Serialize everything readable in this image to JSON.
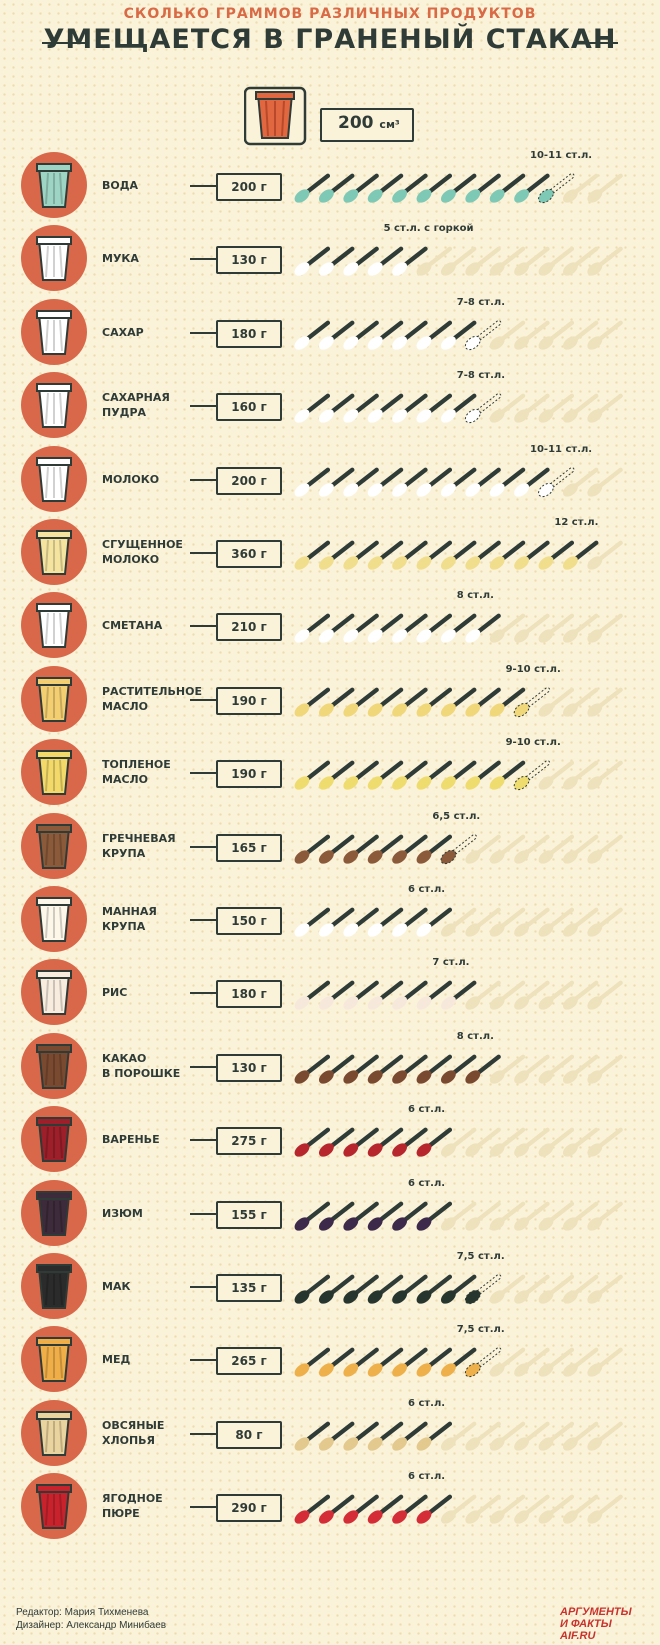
{
  "header": {
    "subtitle": "СКОЛЬКО ГРАММОВ РАЗЛИЧНЫХ ПРОДУКТОВ",
    "title": "УМЕЩАЕТСЯ В ГРАНЕНЫЙ СТАКАН",
    "reference_value": "200",
    "reference_unit": "см³"
  },
  "items": [
    {
      "name_lines": [
        "ВОДА"
      ],
      "weight": "200 г",
      "spoons_label": "10-11 ст.л.",
      "full": 10,
      "partial": 1,
      "color": "#7ec9b6",
      "glass": "#9dd4c4"
    },
    {
      "name_lines": [
        "МУКА"
      ],
      "weight": "130 г",
      "spoons_label": "5 ст.л. с горкой",
      "full": 5,
      "partial": 0,
      "color": "#ffffff",
      "glass": "#ffffff"
    },
    {
      "name_lines": [
        "САХАР"
      ],
      "weight": "180 г",
      "spoons_label": "7-8 ст.л.",
      "full": 7,
      "partial": 1,
      "color": "#ffffff",
      "glass": "#ffffff"
    },
    {
      "name_lines": [
        "САХАРНАЯ",
        "ПУДРА"
      ],
      "weight": "160 г",
      "spoons_label": "7-8 ст.л.",
      "full": 7,
      "partial": 1,
      "color": "#ffffff",
      "glass": "#ffffff"
    },
    {
      "name_lines": [
        "МОЛОКО"
      ],
      "weight": "200 г",
      "spoons_label": "10-11 ст.л.",
      "full": 10,
      "partial": 1,
      "color": "#ffffff",
      "glass": "#ffffff"
    },
    {
      "name_lines": [
        "СГУЩЕННОЕ",
        "МОЛОКО"
      ],
      "weight": "360 г",
      "spoons_label": "12 ст.л.",
      "full": 12,
      "partial": 0,
      "color": "#f0de8c",
      "glass": "#f4e4a0"
    },
    {
      "name_lines": [
        "СМЕТАНА"
      ],
      "weight": "210 г",
      "spoons_label": "8 ст.л.",
      "full": 8,
      "partial": 0,
      "color": "#ffffff",
      "glass": "#ffffff"
    },
    {
      "name_lines": [
        "РАСТИТЕЛЬНОЕ",
        "МАСЛО"
      ],
      "weight": "190 г",
      "spoons_label": "9-10 ст.л.",
      "full": 9,
      "partial": 1,
      "color": "#f0d77a",
      "glass": "#f3cf72"
    },
    {
      "name_lines": [
        "ТОПЛЕНОЕ",
        "МАСЛО"
      ],
      "weight": "190 г",
      "spoons_label": "9-10 ст.л.",
      "full": 9,
      "partial": 1,
      "color": "#efdc6e",
      "glass": "#f2d96a"
    },
    {
      "name_lines": [
        "ГРЕЧНЕВАЯ",
        "КРУПА"
      ],
      "weight": "165 г",
      "spoons_label": "6,5 ст.л.",
      "full": 6,
      "partial": 1,
      "color": "#8a5a3a",
      "glass": "#8a5a3a"
    },
    {
      "name_lines": [
        "МАННАЯ",
        "КРУПА"
      ],
      "weight": "150 г",
      "spoons_label": "6 ст.л.",
      "full": 6,
      "partial": 0,
      "color": "#ffffff",
      "glass": "#fdf7ea"
    },
    {
      "name_lines": [
        "РИС"
      ],
      "weight": "180 г",
      "spoons_label": "7 ст.л.",
      "full": 7,
      "partial": 0,
      "color": "#f6e9dc",
      "glass": "#f8ecdf"
    },
    {
      "name_lines": [
        "КАКАО",
        "В ПОРОШКЕ"
      ],
      "weight": "130 г",
      "spoons_label": "8 ст.л.",
      "full": 8,
      "partial": 0,
      "color": "#7a4a30",
      "glass": "#7a4a30"
    },
    {
      "name_lines": [
        "ВАРЕНЬЕ"
      ],
      "weight": "275 г",
      "spoons_label": "6 ст.л.",
      "full": 6,
      "partial": 0,
      "color": "#b8262d",
      "glass": "#9c1f2a"
    },
    {
      "name_lines": [
        "ИЗЮМ"
      ],
      "weight": "155 г",
      "spoons_label": "6 ст.л.",
      "full": 6,
      "partial": 0,
      "color": "#3d2a4a",
      "glass": "#3d2a3a"
    },
    {
      "name_lines": [
        "МАК"
      ],
      "weight": "135 г",
      "spoons_label": "7,5 ст.л.",
      "full": 7,
      "partial": 1,
      "color": "#27352f",
      "glass": "#2b2b2b"
    },
    {
      "name_lines": [
        "МЕД"
      ],
      "weight": "265 г",
      "spoons_label": "7,5 ст.л.",
      "full": 7,
      "partial": 1,
      "color": "#eeb04a",
      "glass": "#efae48"
    },
    {
      "name_lines": [
        "ОВСЯНЫЕ",
        "ХЛОПЬЯ"
      ],
      "weight": "80 г",
      "spoons_label": "6 ст.л.",
      "full": 6,
      "partial": 0,
      "color": "#e3c98d",
      "glass": "#e9d39e"
    },
    {
      "name_lines": [
        "ЯГОДНОЕ",
        "ПЮРЕ"
      ],
      "weight": "290 г",
      "spoons_label": "6 ст.л.",
      "full": 6,
      "partial": 0,
      "color": "#d42d37",
      "glass": "#c8232d"
    }
  ],
  "credits": {
    "editor": "Редактор: Мария Тихменева",
    "designer": "Дизайнер: Александр Минибаев"
  },
  "logo": {
    "line1": "АРГУМЕНТЫ",
    "line2": "И ФАКТЫ AIF.RU"
  },
  "colors": {
    "background": "#fbf3d9",
    "circle": "#d9684a",
    "dark": "#2f3b37",
    "empty_spoon": "#eee2bd",
    "accent": "#d96a46"
  }
}
